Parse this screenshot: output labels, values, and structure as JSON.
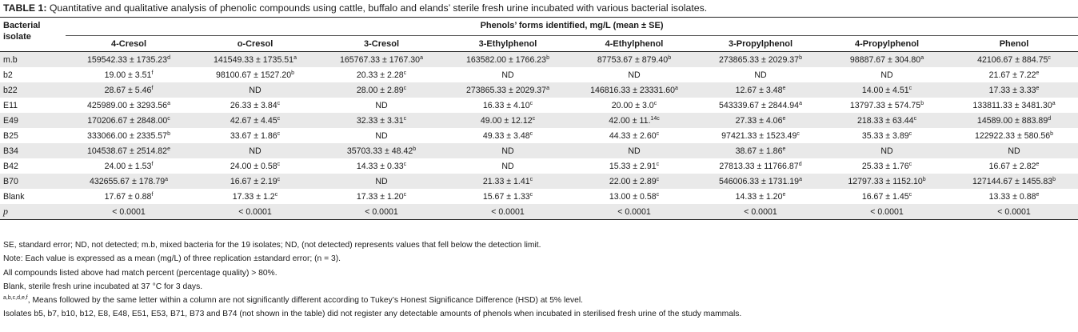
{
  "caption": {
    "label": "TABLE 1:",
    "text": "Quantitative and qualitative analysis of phenolic compounds using cattle, buffalo and elands’ sterile fresh urine incubated with various bacterial isolates."
  },
  "table": {
    "isolate_header": "Bacterial isolate",
    "group_header": "Phenols’ forms identified, mg/L (mean ± SE)",
    "columns": [
      "4-Cresol",
      "o-Cresol",
      "3-Cresol",
      "3-Ethylphenol",
      "4-Ethylphenol",
      "3-Propylphenol",
      "4-Propylphenol",
      "Phenol"
    ],
    "rows": [
      {
        "isolate": "m.b",
        "cells": [
          [
            "159542.33 ± 1735.23",
            "d"
          ],
          [
            "141549.33 ± 1735.51",
            "a"
          ],
          [
            "165767.33 ± 1767.30",
            "a"
          ],
          [
            "163582.00 ± 1766.23",
            "b"
          ],
          [
            "87753.67 ± 879.40",
            "b"
          ],
          [
            "273865.33 ± 2029.37",
            "b"
          ],
          [
            "98887.67 ± 304.80",
            "a"
          ],
          [
            "42106.67 ± 884.75",
            "c"
          ]
        ]
      },
      {
        "isolate": "b2",
        "cells": [
          [
            "19.00 ± 3.51",
            "f"
          ],
          [
            "98100.67 ± 1527.20",
            "b"
          ],
          [
            "20.33 ± 2.28",
            "c"
          ],
          [
            "ND",
            ""
          ],
          [
            "ND",
            ""
          ],
          [
            "ND",
            ""
          ],
          [
            "ND",
            ""
          ],
          [
            "21.67 ± 7.22",
            "e"
          ]
        ]
      },
      {
        "isolate": "b22",
        "cells": [
          [
            "28.67 ± 5.46",
            "f"
          ],
          [
            "ND",
            ""
          ],
          [
            "28.00 ± 2.89",
            "c"
          ],
          [
            "273865.33 ± 2029.37",
            "a"
          ],
          [
            "146816.33 ± 23331.60",
            "a"
          ],
          [
            "12.67 ± 3.48",
            "e"
          ],
          [
            "14.00 ± 4.51",
            "c"
          ],
          [
            "17.33 ± 3.33",
            "e"
          ]
        ]
      },
      {
        "isolate": "E11",
        "cells": [
          [
            "425989.00 ± 3293.56",
            "a"
          ],
          [
            "26.33 ± 3.84",
            "c"
          ],
          [
            "ND",
            ""
          ],
          [
            "16.33 ± 4.10",
            "c"
          ],
          [
            "20.00 ± 3.0",
            "c"
          ],
          [
            "543339.67 ± 2844.94",
            "a"
          ],
          [
            "13797.33 ± 574.75",
            "b"
          ],
          [
            "133811.33 ± 3481.30",
            "a"
          ]
        ]
      },
      {
        "isolate": "E49",
        "cells": [
          [
            "170206.67 ± 2848.00",
            "c"
          ],
          [
            "42.67 ± 4.45",
            "c"
          ],
          [
            "32.33 ± 3.31",
            "c"
          ],
          [
            "49.00 ± 12.12",
            "c"
          ],
          [
            "42.00 ± 11.",
            "14c"
          ],
          [
            "27.33 ± 4.06",
            "e"
          ],
          [
            "218.33 ± 63.44",
            "c"
          ],
          [
            "14589.00 ± 883.89",
            "d"
          ]
        ]
      },
      {
        "isolate": "B25",
        "cells": [
          [
            "333066.00 ± 2335.57",
            "b"
          ],
          [
            "33.67 ± 1.86",
            "c"
          ],
          [
            "ND",
            ""
          ],
          [
            "49.33 ± 3.48",
            "c"
          ],
          [
            "44.33 ± 2.60",
            "c"
          ],
          [
            "97421.33 ± 1523.49",
            "c"
          ],
          [
            "35.33 ± 3.89",
            "c"
          ],
          [
            "122922.33 ± 580.56",
            "b"
          ]
        ]
      },
      {
        "isolate": "B34",
        "cells": [
          [
            "104538.67 ± 2514.82",
            "e"
          ],
          [
            "ND",
            ""
          ],
          [
            "35703.33 ± 48.42",
            "b"
          ],
          [
            "ND",
            ""
          ],
          [
            "ND",
            ""
          ],
          [
            "38.67 ± 1.86",
            "e"
          ],
          [
            "ND",
            ""
          ],
          [
            "ND",
            ""
          ]
        ]
      },
      {
        "isolate": "B42",
        "cells": [
          [
            "24.00 ± 1.53",
            "f"
          ],
          [
            "24.00 ± 0.58",
            "c"
          ],
          [
            "14.33 ± 0.33",
            "c"
          ],
          [
            "ND",
            ""
          ],
          [
            "15.33 ± 2.91",
            "c"
          ],
          [
            "27813.33 ± 11766.87",
            "d"
          ],
          [
            "25.33 ± 1.76",
            "c"
          ],
          [
            "16.67 ± 2.82",
            "e"
          ]
        ]
      },
      {
        "isolate": "B70",
        "cells": [
          [
            "432655.67 ± 178.79",
            "a"
          ],
          [
            "16.67 ± 2.19",
            "c"
          ],
          [
            "ND",
            ""
          ],
          [
            "21.33 ± 1.41",
            "c"
          ],
          [
            "22.00 ± 2.89",
            "c"
          ],
          [
            "546006.33 ± 1731.19",
            "a"
          ],
          [
            "12797.33 ± 1152.10",
            "b"
          ],
          [
            "127144.67 ± 1455.83",
            "b"
          ]
        ]
      },
      {
        "isolate": "Blank",
        "cells": [
          [
            "17.67 ± 0.88",
            "f"
          ],
          [
            "17.33 ± 1.2",
            "c"
          ],
          [
            "17.33 ± 1.20",
            "c"
          ],
          [
            "15.67 ± 1.33",
            "c"
          ],
          [
            "13.00 ± 0.58",
            "c"
          ],
          [
            "14.33 ± 1.20",
            "e"
          ],
          [
            "16.67 ± 1.45",
            "c"
          ],
          [
            "13.33 ± 0.88",
            "e"
          ]
        ]
      }
    ],
    "p_row": {
      "label": "p",
      "values": [
        "< 0.0001",
        "< 0.0001",
        "< 0.0001",
        "< 0.0001",
        "< 0.0001",
        "< 0.0001",
        "< 0.0001",
        "< 0.0001"
      ]
    }
  },
  "notes": [
    {
      "sup": "",
      "text": "SE, standard error; ND, not detected; m.b, mixed bacteria for the 19 isolates; ND, (not detected) represents values that fell below the detection limit."
    },
    {
      "sup": "",
      "text": "Note: Each value is expressed as a mean (mg/L) of three replication ±standard error; (n = 3)."
    },
    {
      "sup": "",
      "text": "All compounds listed above had match percent (percentage quality) > 80%."
    },
    {
      "sup": "",
      "text": "Blank, sterile fresh urine incubated at 37 °C for 3 days."
    },
    {
      "sup": "a,b,c,d,e,f",
      "text": ", Means followed by the same letter within a column are not significantly different according to Tukey’s Honest Significance Difference (HSD) at 5% level."
    },
    {
      "sup": "",
      "text": "Isolates b5, b7, b10, b12, E8, E48, E51, E53, B71, B73 and B74 (not shown in the table) did not register any detectable amounts of phenols when incubated in sterilised fresh urine of the study mammals."
    }
  ]
}
